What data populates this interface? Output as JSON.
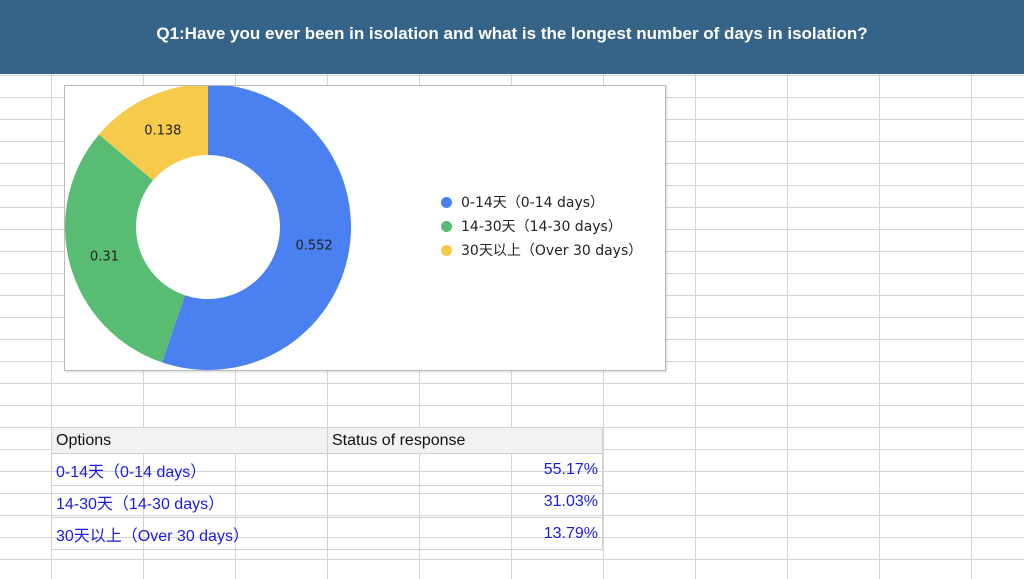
{
  "header": {
    "title": "Q1:Have you ever been in isolation and what is the longest number of days in isolation?"
  },
  "chart_data": {
    "type": "pie",
    "donut": true,
    "categories": [
      "0-14天（0-14 days）",
      "14-30天（14-30 days）",
      "30天以上（Over 30 days）"
    ],
    "values": [
      0.552,
      0.31,
      0.138
    ],
    "data_labels": [
      "0.552",
      "0.31",
      "0.138"
    ],
    "colors": [
      "#4a80f0",
      "#58bd72",
      "#f6cb4b"
    ],
    "legend_position": "right",
    "start_angle_deg": 0,
    "direction": "clockwise"
  },
  "table": {
    "headers": [
      "Options",
      "Status of response"
    ],
    "rows": [
      {
        "option": "0-14天（0-14 days）",
        "value": "55.17%"
      },
      {
        "option": "14-30天（14-30 days）",
        "value": "31.03%"
      },
      {
        "option": "30天以上（Over 30 days）",
        "value": "13.79%"
      }
    ]
  }
}
